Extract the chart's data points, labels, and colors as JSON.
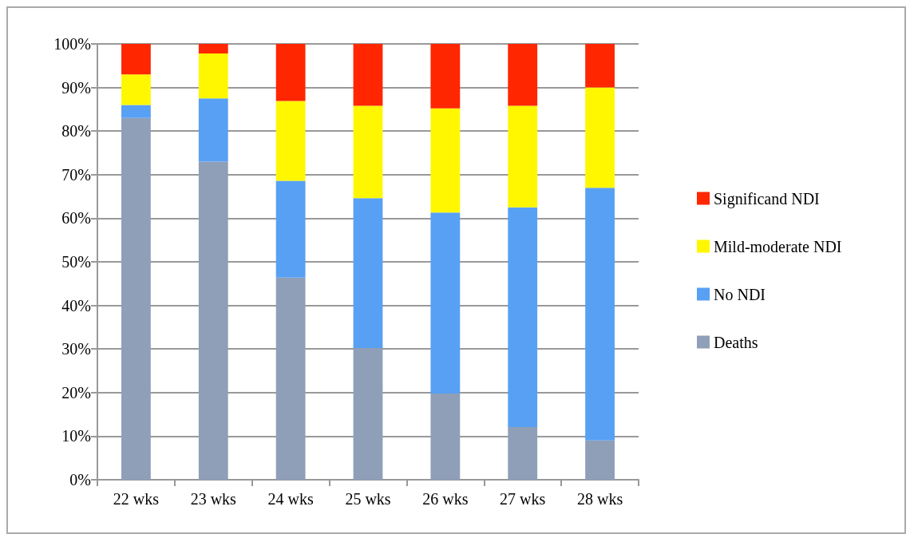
{
  "chart_data": {
    "type": "bar",
    "stacked": true,
    "categories": [
      "22 wks",
      "23 wks",
      "24 wks",
      "25 wks",
      "26 wks",
      "27 wks",
      "28 wks"
    ],
    "series": [
      {
        "name": "Deaths",
        "color": "#8f9fb8",
        "values": [
          83,
          73,
          46.4,
          30.2,
          19.8,
          12.1,
          9
        ]
      },
      {
        "name": "No NDI",
        "color": "#58a0f4",
        "values": [
          3,
          14.5,
          22.2,
          34.4,
          41.5,
          50.4,
          58
        ]
      },
      {
        "name": "Mild-moderate NDI",
        "color": "#fff700",
        "values": [
          7,
          10.3,
          18.3,
          21.2,
          23.9,
          23.3,
          23
        ]
      },
      {
        "name": "Significand NDI",
        "color": "#ff2600",
        "values": [
          7,
          2.2,
          13.1,
          14.2,
          14.8,
          14.2,
          10
        ]
      }
    ],
    "ylim": [
      0,
      100
    ],
    "yticks": [
      {
        "value": 0,
        "label": "0%"
      },
      {
        "value": 10,
        "label": "10%"
      },
      {
        "value": 20,
        "label": "20%"
      },
      {
        "value": 30,
        "label": "30%"
      },
      {
        "value": 40,
        "label": "40%"
      },
      {
        "value": 50,
        "label": "50%"
      },
      {
        "value": 60,
        "label": "60%"
      },
      {
        "value": 70,
        "label": "70%"
      },
      {
        "value": 80,
        "label": "80%"
      },
      {
        "value": 90,
        "label": "90%"
      },
      {
        "value": 100,
        "label": "100%"
      }
    ],
    "grid": "y",
    "legend": "right"
  }
}
